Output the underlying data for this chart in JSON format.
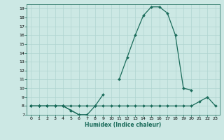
{
  "xlabel": "Humidex (Indice chaleur)",
  "x_values": [
    0,
    1,
    2,
    3,
    4,
    5,
    6,
    7,
    8,
    9,
    10,
    11,
    12,
    13,
    14,
    15,
    16,
    17,
    18,
    19,
    20,
    21,
    22,
    23
  ],
  "line1_y": [
    8,
    8,
    8,
    8,
    8,
    7.5,
    7,
    7,
    8,
    9.3,
    null,
    null,
    null,
    null,
    null,
    null,
    null,
    null,
    null,
    null,
    null,
    null,
    null,
    null
  ],
  "line2_y": [
    8,
    8,
    8,
    8,
    8,
    7.5,
    7,
    7,
    null,
    null,
    null,
    11,
    13.5,
    16,
    18.2,
    19.2,
    19.2,
    18.5,
    16,
    10,
    9.8,
    null,
    null,
    null
  ],
  "line3_y": [
    8,
    8,
    8,
    8,
    8,
    8,
    8,
    8,
    8,
    8,
    8,
    8,
    8,
    8,
    8,
    8,
    8,
    8,
    8,
    8,
    8,
    8.5,
    9,
    8
  ],
  "bg_color": "#cce8e4",
  "grid_color": "#b0d4d0",
  "line_color": "#1a6b5a",
  "ylim": [
    7,
    19.5
  ],
  "xlim": [
    -0.5,
    23.5
  ],
  "yticks": [
    7,
    8,
    9,
    10,
    11,
    12,
    13,
    14,
    15,
    16,
    17,
    18,
    19
  ],
  "xticks": [
    0,
    1,
    2,
    3,
    4,
    5,
    6,
    7,
    8,
    9,
    10,
    11,
    12,
    13,
    14,
    15,
    16,
    17,
    18,
    19,
    20,
    21,
    22,
    23
  ],
  "marker_size": 2.0,
  "linewidth": 0.9
}
